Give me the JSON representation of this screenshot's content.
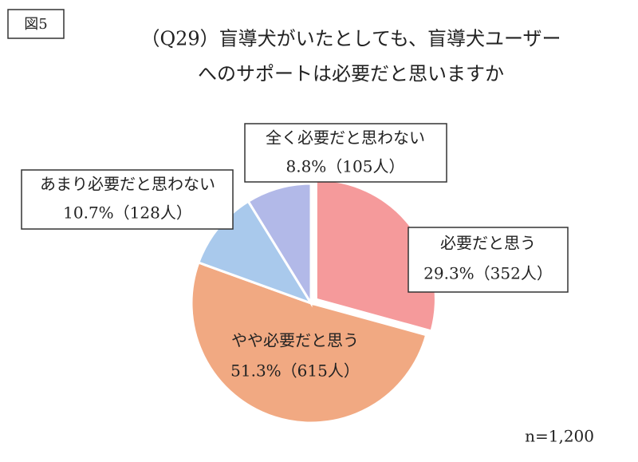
{
  "figure_label": "図5",
  "chart_data": {
    "type": "pie",
    "title": [
      "（Q29）盲導犬がいたとしても、盲導犬ユーザー",
      "へのサポートは必要だと思いますか"
    ],
    "categories": [
      "必要だと思う",
      "やや必要だと思う",
      "あまり必要だと思わない",
      "全く必要だと思わない"
    ],
    "values": [
      29.3,
      51.3,
      10.7,
      8.8
    ],
    "value_labels": [
      "29.3%（352人）",
      "51.3%（615人）",
      "10.7%（128人）",
      "8.8%（105人）"
    ],
    "colors": [
      "#f59a9b",
      "#f1a982",
      "#a9c9ec",
      "#b2b9e8"
    ],
    "note": "n=1,200"
  }
}
